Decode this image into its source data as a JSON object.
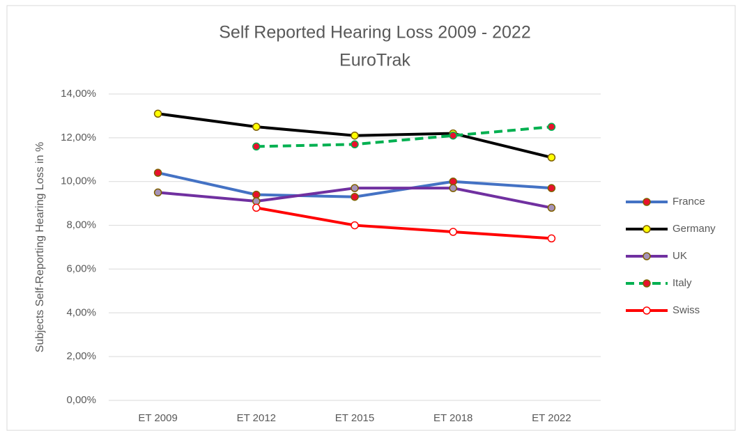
{
  "chart_data": {
    "type": "line",
    "title": "Self Reported Hearing Loss 2009 - 2022",
    "subtitle": "EuroTrak",
    "y_label": "Subjects Self-Reporting  Hearing  Loss in %",
    "categories": [
      "ET 2009",
      "ET 2012",
      "ET 2015",
      "ET 2018",
      "ET 2022"
    ],
    "series": [
      {
        "name": "France",
        "color": "#4472c4",
        "marker_color": "#e8112d",
        "dashed": false,
        "values": [
          10.4,
          9.4,
          9.3,
          10.0,
          9.7
        ]
      },
      {
        "name": "Germany",
        "color": "#000000",
        "marker_color": "#ffff00",
        "dashed": false,
        "values": [
          13.1,
          12.5,
          12.1,
          12.2,
          11.1
        ]
      },
      {
        "name": "UK",
        "color": "#7030a0",
        "marker_color": "#a593b8",
        "dashed": false,
        "values": [
          9.5,
          9.1,
          9.7,
          9.7,
          8.8
        ]
      },
      {
        "name": "Italy",
        "color": "#00b050",
        "marker_color": "#e8112d",
        "dashed": true,
        "values": [
          null,
          11.6,
          11.7,
          12.1,
          12.5
        ]
      },
      {
        "name": "Swiss",
        "color": "#ff0000",
        "marker_color": "#ffffff",
        "dashed": false,
        "values": [
          null,
          8.8,
          8.0,
          7.7,
          7.4
        ]
      }
    ],
    "ylim": [
      0,
      14
    ],
    "yticks": [
      {
        "value": 0,
        "label": "0,00%"
      },
      {
        "value": 2,
        "label": "2,00%"
      },
      {
        "value": 4,
        "label": "4,00%"
      },
      {
        "value": 6,
        "label": "6,00%"
      },
      {
        "value": 8,
        "label": "8,00%"
      },
      {
        "value": 10,
        "label": "10,00%"
      },
      {
        "value": 12,
        "label": "12,00%"
      },
      {
        "value": 14,
        "label": "14,00%"
      }
    ],
    "grid": true,
    "legend": "right"
  }
}
